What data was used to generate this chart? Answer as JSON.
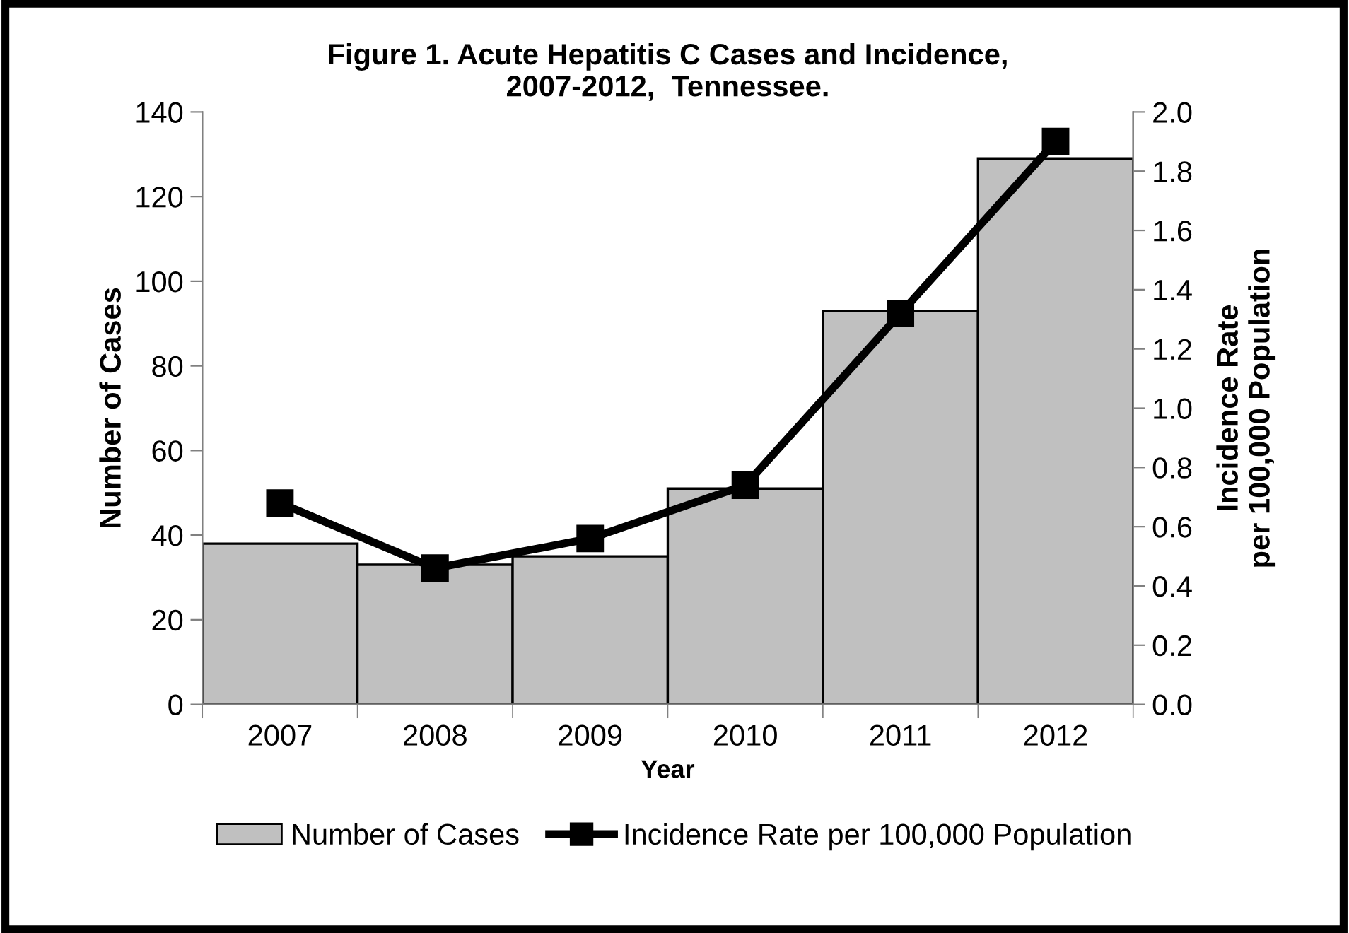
{
  "chart_data": {
    "type": "bar",
    "title": "Figure 1. Acute Hepatitis C Cases and Incidence,\n2007-2012,  Tennessee.",
    "xlabel": "Year",
    "ylabel": "Number of Cases",
    "y2label": "Incidence Rate\nper 100,000 Population",
    "categories": [
      "2007",
      "2008",
      "2009",
      "2010",
      "2011",
      "2012"
    ],
    "series": [
      {
        "name": "Number of Cases",
        "color": "#c0c0c0",
        "values": [
          38,
          33,
          35,
          51,
          93,
          129
        ]
      },
      {
        "name": "Incidence Rate per 100,000 Population",
        "type": "line",
        "axis": "y2",
        "color": "#000000",
        "marker": "square",
        "values": [
          0.68,
          0.46,
          0.56,
          0.74,
          1.32,
          1.9
        ]
      }
    ],
    "ylim": [
      0,
      140
    ],
    "yticks": [
      0,
      20,
      40,
      60,
      80,
      100,
      120,
      140
    ],
    "y2lim": [
      0,
      2.0
    ],
    "y2ticks": [
      {
        "value": 0,
        "label": "0.0"
      },
      {
        "value": 0.2,
        "label": "0.2"
      },
      {
        "value": 0.4,
        "label": "0.4"
      },
      {
        "value": 0.6,
        "label": "0.6"
      },
      {
        "value": 0.8,
        "label": "0.8"
      },
      {
        "value": 1.0,
        "label": "1.0"
      },
      {
        "value": 1.2,
        "label": "1.2"
      },
      {
        "value": 1.4,
        "label": "1.4"
      },
      {
        "value": 1.6,
        "label": "1.6"
      },
      {
        "value": 1.8,
        "label": "1.8"
      },
      {
        "value": 2.0,
        "label": "2.0"
      }
    ],
    "grid": false,
    "legend": "bottom"
  }
}
